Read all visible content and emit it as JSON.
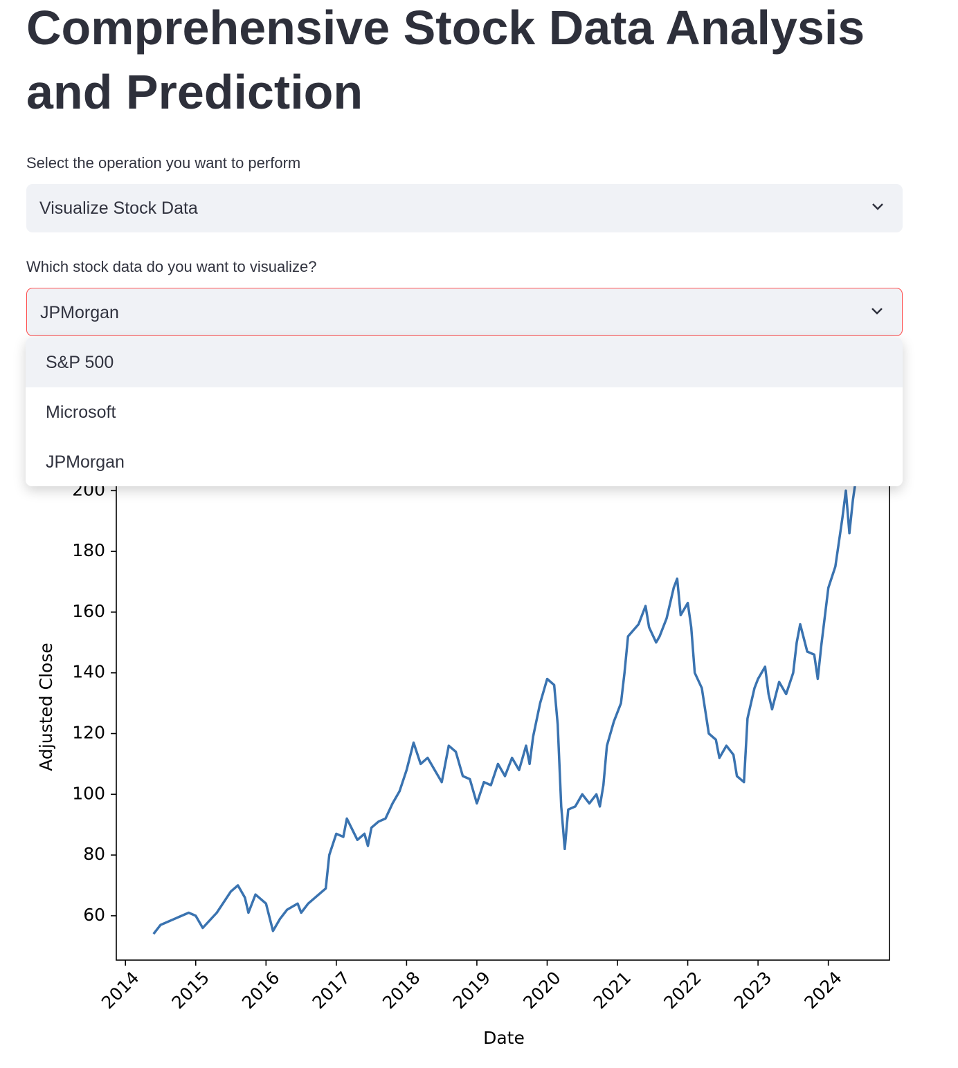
{
  "header": {
    "title": "Comprehensive Stock Data Analysis and Prediction"
  },
  "operation_select": {
    "label": "Select the operation you want to perform",
    "value": "Visualize Stock Data"
  },
  "stock_select": {
    "label": "Which stock data do you want to visualize?",
    "value": "JPMorgan",
    "options": [
      "S&P 500",
      "Microsoft",
      "JPMorgan"
    ]
  },
  "chart_data": {
    "type": "line",
    "xlabel": "Date",
    "ylabel": "Adjusted Close",
    "color": "#3a73b0",
    "grid": false,
    "xlim": [
      2013.87,
      2024.87
    ],
    "xticks": [
      2014,
      2015,
      2016,
      2017,
      2018,
      2019,
      2020,
      2021,
      2022,
      2023,
      2024
    ],
    "ylim": [
      45.4,
      212.6
    ],
    "yticks": [
      60,
      80,
      100,
      120,
      140,
      160,
      180,
      200
    ],
    "x": [
      2014.4,
      2014.5,
      2014.7,
      2014.9,
      2015.0,
      2015.1,
      2015.3,
      2015.5,
      2015.6,
      2015.7,
      2015.75,
      2015.85,
      2016.0,
      2016.1,
      2016.2,
      2016.3,
      2016.45,
      2016.5,
      2016.6,
      2016.8,
      2016.85,
      2016.9,
      2017.0,
      2017.1,
      2017.15,
      2017.3,
      2017.4,
      2017.45,
      2017.5,
      2017.6,
      2017.7,
      2017.8,
      2017.9,
      2018.0,
      2018.1,
      2018.2,
      2018.3,
      2018.4,
      2018.5,
      2018.6,
      2018.7,
      2018.8,
      2018.9,
      2019.0,
      2019.1,
      2019.2,
      2019.3,
      2019.4,
      2019.5,
      2019.6,
      2019.7,
      2019.75,
      2019.8,
      2019.9,
      2020.0,
      2020.1,
      2020.15,
      2020.2,
      2020.25,
      2020.3,
      2020.4,
      2020.5,
      2020.6,
      2020.7,
      2020.75,
      2020.8,
      2020.85,
      2020.95,
      2021.05,
      2021.1,
      2021.15,
      2021.3,
      2021.4,
      2021.45,
      2021.55,
      2021.6,
      2021.7,
      2021.8,
      2021.85,
      2021.9,
      2022.0,
      2022.05,
      2022.1,
      2022.2,
      2022.3,
      2022.4,
      2022.45,
      2022.55,
      2022.65,
      2022.7,
      2022.8,
      2022.85,
      2022.95,
      2023.0,
      2023.1,
      2023.15,
      2023.2,
      2023.3,
      2023.4,
      2023.5,
      2023.55,
      2023.6,
      2023.7,
      2023.8,
      2023.85,
      2023.9,
      2024.0,
      2024.1,
      2024.2,
      2024.25,
      2024.3,
      2024.35,
      2024.4
    ],
    "values": [
      54,
      57,
      59,
      61,
      60,
      56,
      61,
      68,
      70,
      66,
      61,
      67,
      64,
      55,
      59,
      62,
      64,
      61,
      64,
      68,
      69,
      80,
      87,
      86,
      92,
      85,
      87,
      83,
      89,
      91,
      92,
      97,
      101,
      108,
      117,
      110,
      112,
      108,
      104,
      116,
      114,
      106,
      105,
      97,
      104,
      103,
      110,
      106,
      112,
      108,
      116,
      110,
      119,
      130,
      138,
      136,
      123,
      96,
      82,
      95,
      96,
      100,
      97,
      100,
      96,
      103,
      116,
      124,
      130,
      140,
      152,
      156,
      162,
      155,
      150,
      152,
      158,
      168,
      171,
      159,
      163,
      155,
      140,
      135,
      120,
      118,
      112,
      116,
      113,
      106,
      104,
      125,
      135,
      138,
      142,
      133,
      128,
      137,
      133,
      140,
      150,
      156,
      147,
      146,
      138,
      149,
      168,
      175,
      191,
      200,
      186,
      197,
      205
    ]
  }
}
